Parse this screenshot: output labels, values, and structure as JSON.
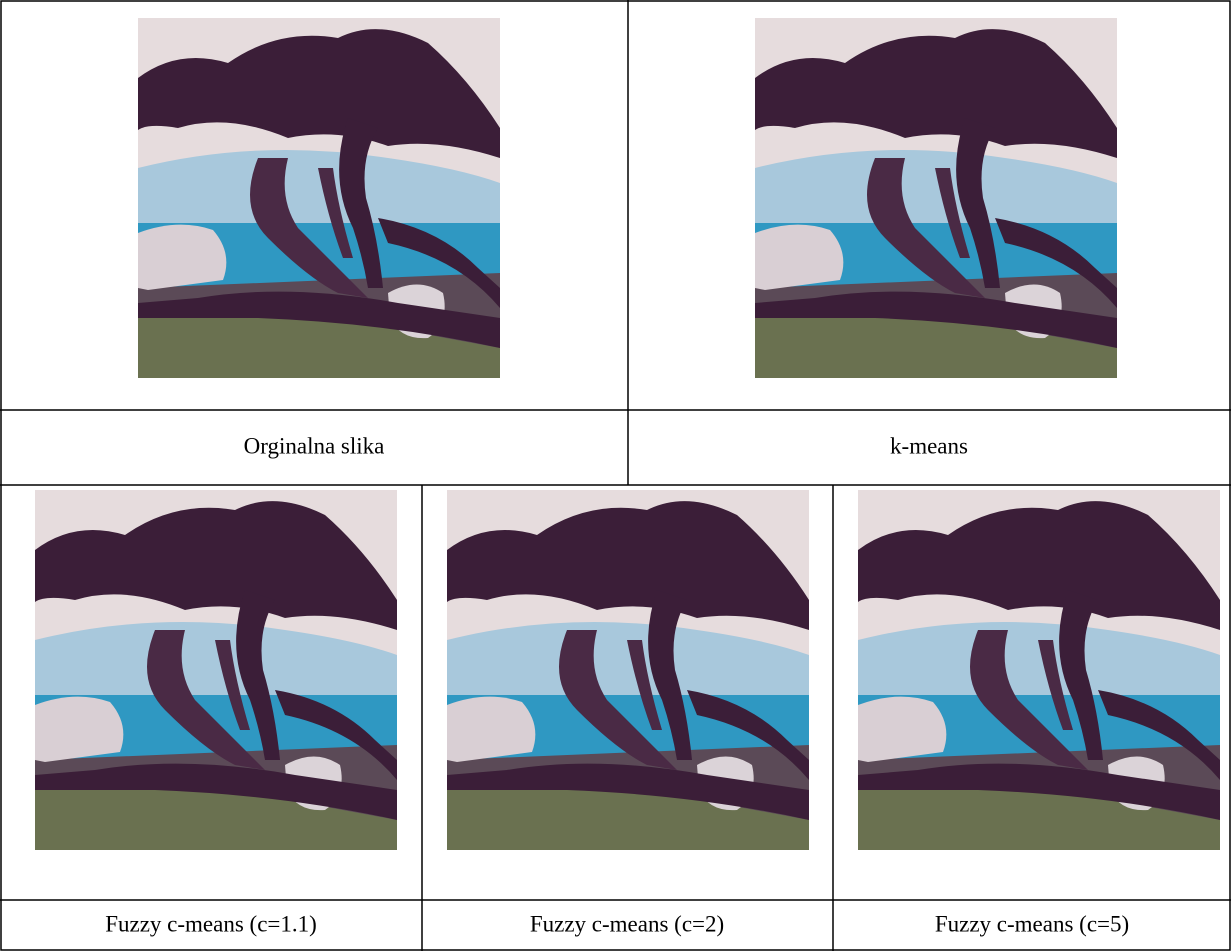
{
  "table": {
    "top_captions": [
      "Orginalna slika",
      "k-means"
    ],
    "bottom_captions": [
      "Fuzzy c-means (c=1.1)",
      "Fuzzy c-means (c=2)",
      "Fuzzy c-means (c=5)"
    ]
  }
}
